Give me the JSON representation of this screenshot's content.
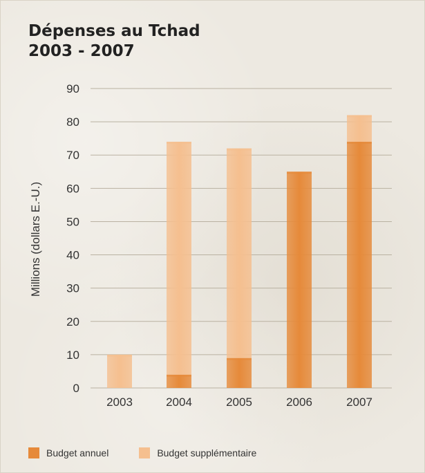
{
  "title": {
    "line1": "Dépenses au Tchad",
    "line2": "2003 - 2007"
  },
  "colors": {
    "budget_annuel": "#e68a3a",
    "budget_supplementaire": "#f5bf8f",
    "gridline": "#b9b1a1"
  },
  "legend": {
    "items": [
      {
        "label": "Budget annuel",
        "color": "#e68a3a"
      },
      {
        "label": "Budget supplémentaire",
        "color": "#f5bf8f"
      }
    ]
  },
  "chart_data": {
    "type": "bar",
    "stacked": true,
    "title": "Dépenses au Tchad 2003 - 2007",
    "xlabel": "",
    "ylabel": "Millions (dollars E.-U.)",
    "categories": [
      "2003",
      "2004",
      "2005",
      "2006",
      "2007"
    ],
    "ylim": [
      0,
      90
    ],
    "yticks": [
      0,
      10,
      20,
      30,
      40,
      50,
      60,
      70,
      80,
      90
    ],
    "grid": true,
    "legend_position": "bottom-left",
    "series": [
      {
        "name": "Budget annuel",
        "color": "#e68a3a",
        "values": [
          0,
          4,
          9,
          65,
          74
        ]
      },
      {
        "name": "Budget supplémentaire",
        "color": "#f5bf8f",
        "values": [
          10,
          70,
          63,
          0,
          8
        ]
      }
    ]
  }
}
